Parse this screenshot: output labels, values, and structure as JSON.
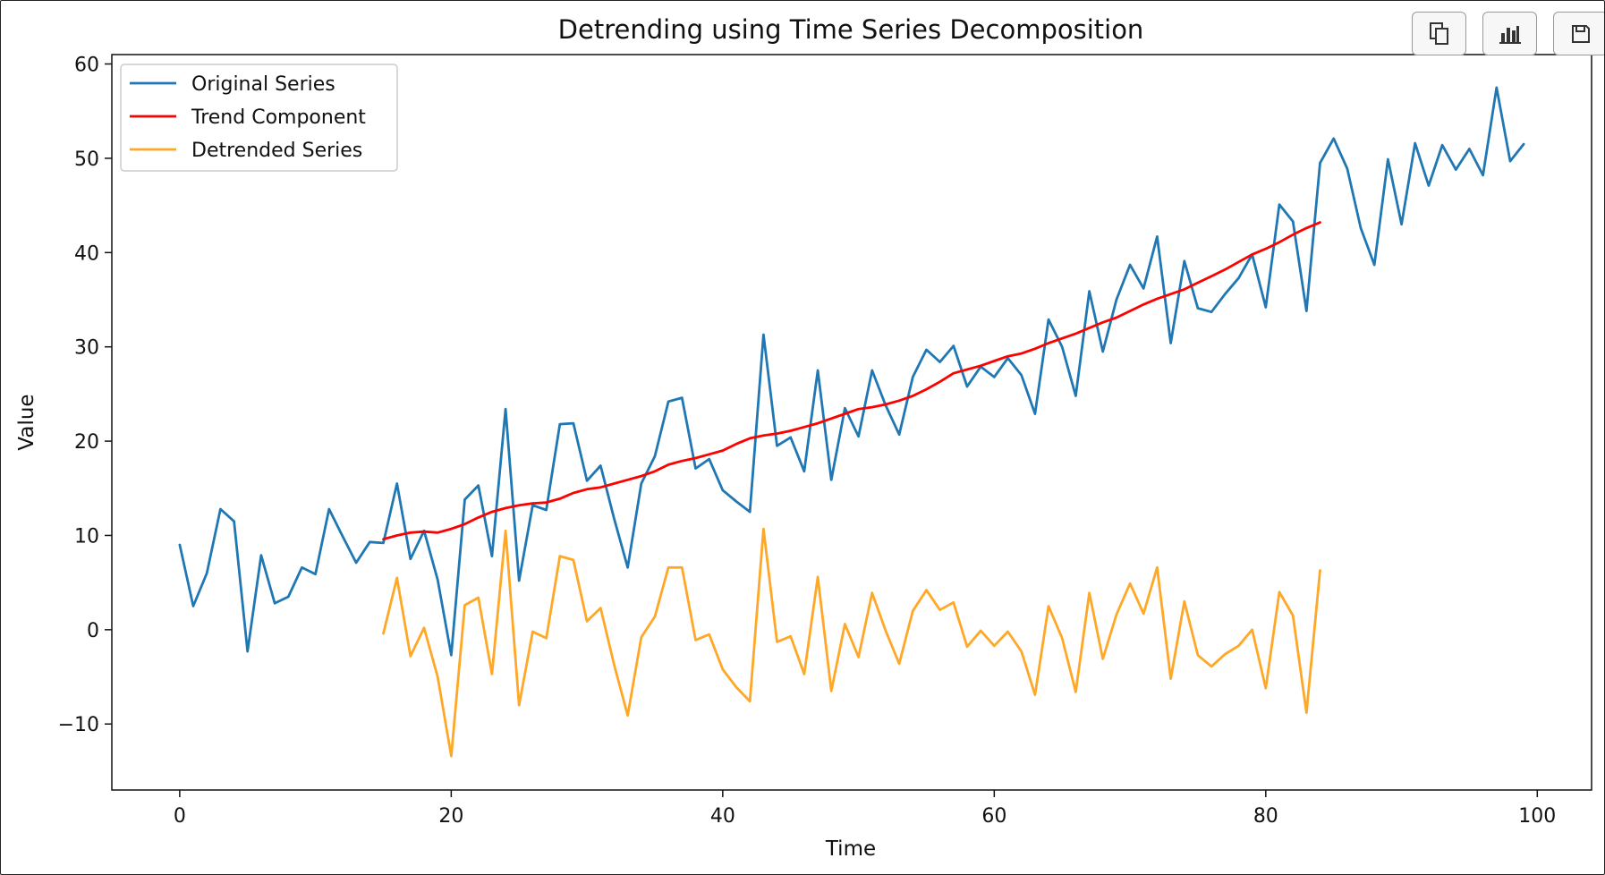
{
  "toolbar": {
    "buttons": [
      {
        "name": "copy-button",
        "icon": "copy-icon"
      },
      {
        "name": "chart-button",
        "icon": "bar-chart-icon"
      },
      {
        "name": "save-button",
        "icon": "save-icon"
      }
    ]
  },
  "chart_data": {
    "type": "line",
    "title": "Detrending using Time Series Decomposition",
    "xlabel": "Time",
    "ylabel": "Value",
    "xlim": [
      -5,
      104
    ],
    "ylim": [
      -17,
      61
    ],
    "xticks": [
      0,
      20,
      40,
      60,
      80,
      100
    ],
    "yticks": [
      -10,
      0,
      10,
      20,
      30,
      40,
      50,
      60
    ],
    "xtick_labels": [
      "0",
      "20",
      "40",
      "60",
      "80",
      "100"
    ],
    "ytick_labels": [
      "−10",
      "0",
      "10",
      "20",
      "30",
      "40",
      "50",
      "60"
    ],
    "grid": false,
    "legend_position": "upper-left",
    "series": [
      {
        "name": "Original Series",
        "color": "#1f77b4",
        "x_start": 0,
        "values": [
          9,
          2.5,
          6,
          12.8,
          11.5,
          -2.3,
          7.9,
          2.8,
          3.5,
          6.6,
          5.9,
          12.8,
          9.9,
          7.1,
          9.3,
          9.2,
          15.5,
          7.5,
          10.5,
          5.3,
          -2.7,
          13.8,
          15.3,
          7.8,
          23.4,
          5.2,
          13.2,
          12.7,
          21.8,
          21.9,
          15.8,
          17.4,
          11.8,
          6.6,
          15.5,
          18.4,
          24.2,
          24.6,
          17.1,
          18.1,
          14.8,
          13.6,
          12.5,
          31.3,
          19.5,
          20.4,
          16.8,
          27.5,
          15.9,
          23.5,
          20.5,
          27.5,
          23.8,
          20.7,
          26.8,
          29.7,
          28.4,
          30.1,
          25.8,
          27.9,
          26.8,
          28.8,
          27,
          22.9,
          32.9,
          30,
          24.8,
          35.9,
          29.5,
          35,
          38.7,
          36.2,
          41.7,
          30.4,
          39.1,
          34.1,
          33.7,
          35.6,
          37.3,
          39.8,
          34.2,
          45.1,
          43.3,
          33.8,
          49.5,
          52.1,
          48.9,
          42.6,
          38.7,
          49.9,
          43,
          51.6,
          47.1,
          51.4,
          48.8,
          51,
          48.2,
          57.5,
          49.7,
          51.5
        ]
      },
      {
        "name": "Trend Component",
        "color": "#ff0000",
        "x_start": 15,
        "values": [
          9.6,
          10,
          10.3,
          10.4,
          10.3,
          10.7,
          11.2,
          11.9,
          12.5,
          12.9,
          13.2,
          13.4,
          13.5,
          13.9,
          14.5,
          14.9,
          15.1,
          15.5,
          15.9,
          16.3,
          16.8,
          17.5,
          17.9,
          18.2,
          18.6,
          19,
          19.7,
          20.3,
          20.6,
          20.8,
          21.1,
          21.5,
          21.9,
          22.4,
          22.9,
          23.4,
          23.6,
          23.9,
          24.3,
          24.8,
          25.5,
          26.3,
          27.2,
          27.6,
          28,
          28.5,
          29,
          29.3,
          29.8,
          30.4,
          30.9,
          31.4,
          32,
          32.6,
          33.1,
          33.8,
          34.5,
          35.1,
          35.6,
          36.1,
          36.8,
          37.5,
          38.2,
          39,
          39.8,
          40.4,
          41.1,
          41.9,
          42.6,
          43.2
        ]
      },
      {
        "name": "Detrended Series",
        "color": "#ffa726",
        "x_start": 15,
        "values": [
          -0.4,
          5.5,
          -2.8,
          0.2,
          -5,
          -13.4,
          2.6,
          3.4,
          -4.7,
          10.5,
          -8,
          -0.2,
          -0.9,
          7.8,
          7.4,
          0.9,
          2.3,
          -3.7,
          -9.1,
          -0.8,
          1.4,
          6.6,
          6.6,
          -1.1,
          -0.5,
          -4.2,
          -6.1,
          -7.6,
          10.7,
          -1.3,
          -0.7,
          -4.7,
          5.6,
          -6.5,
          0.6,
          -2.9,
          3.9,
          -0.1,
          -3.6,
          2,
          4.2,
          2.1,
          2.9,
          -1.8,
          -0.1,
          -1.7,
          -0.2,
          -2.3,
          -6.9,
          2.5,
          -0.9,
          -6.6,
          3.9,
          -3.1,
          1.6,
          4.9,
          1.7,
          6.6,
          -5.2,
          3,
          -2.7,
          -3.9,
          -2.6,
          -1.7,
          0,
          -6.2,
          4,
          1.5,
          -8.8,
          6.3
        ]
      }
    ]
  }
}
